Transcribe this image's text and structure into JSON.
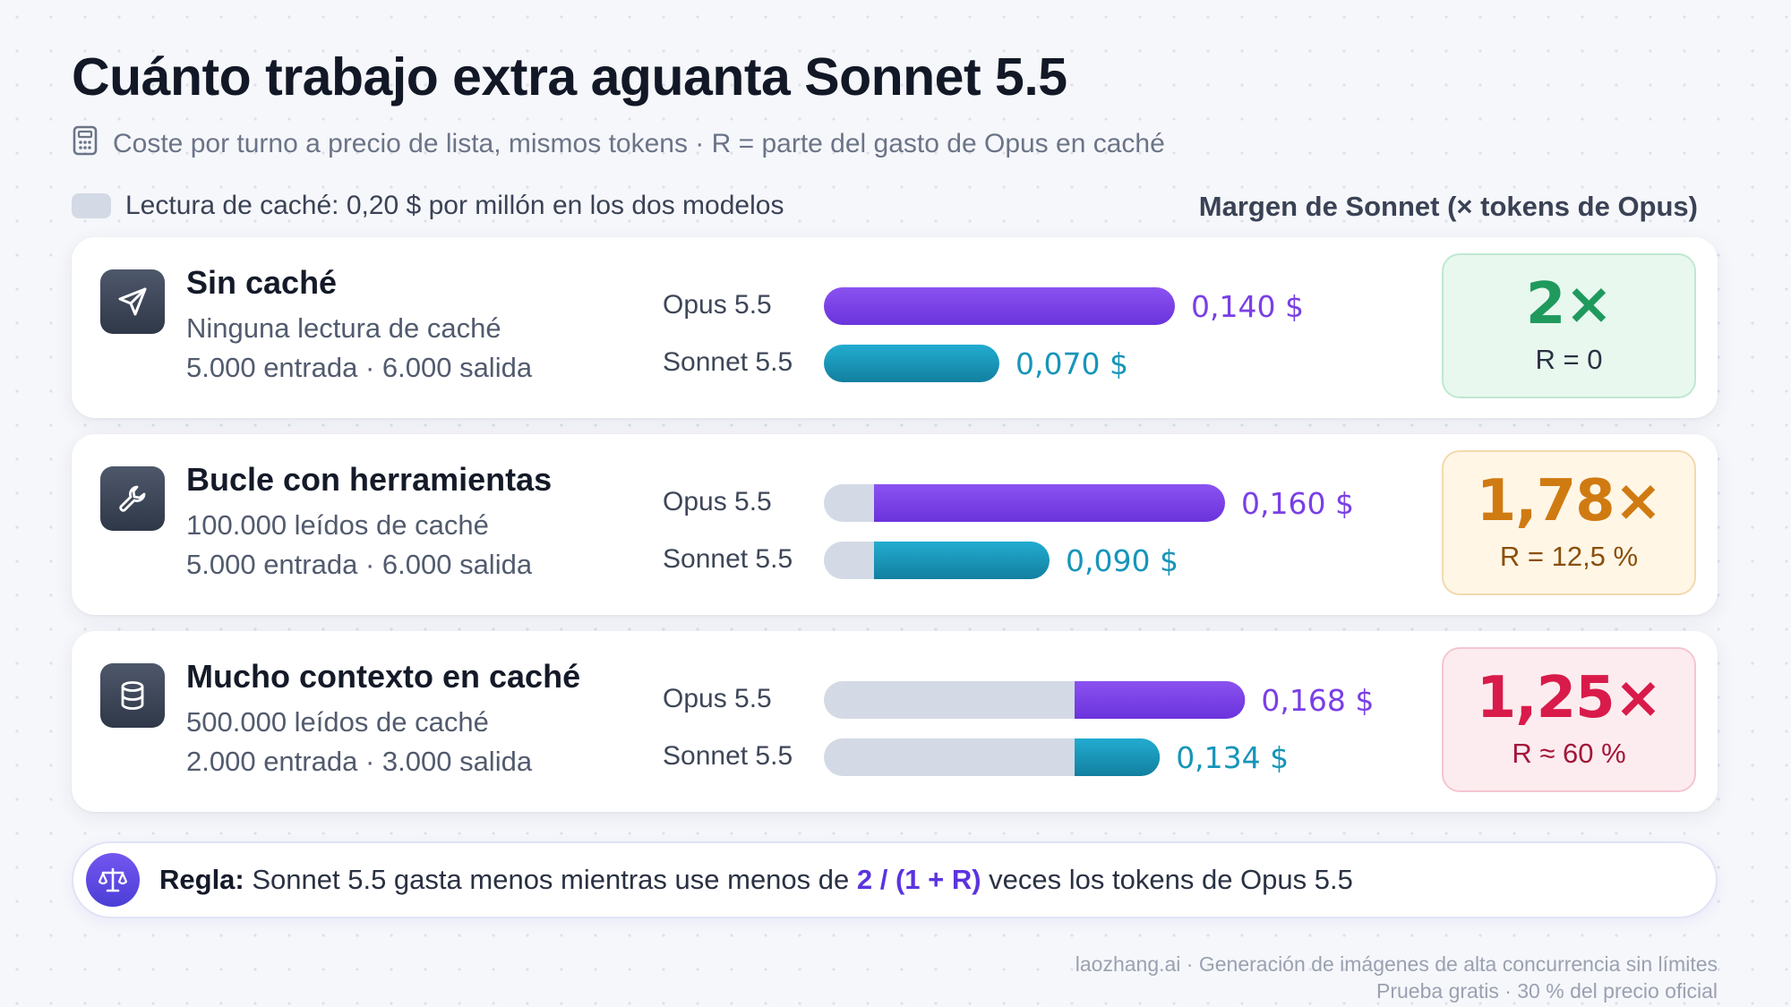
{
  "title": "Cuánto trabajo extra aguanta Sonnet 5.5",
  "subtitle": "Coste por turno a precio de lista, mismos tokens · R = parte del gasto de Opus en caché",
  "legend_label": "Lectura de caché: 0,20 $ por millón en los dos modelos",
  "margin_header": "Margen de Sonnet (× tokens de Opus)",
  "colors": {
    "opus": "#7a3fe6",
    "sonnet": "#1795b9",
    "cache": "#d3dae5",
    "good": "#1f9a5c",
    "mid": "#d07a12",
    "bad": "#d81b4a"
  },
  "chart_data": {
    "type": "bar",
    "orientation": "horizontal",
    "series_names": [
      "Opus 5.5",
      "Sonnet 5.5"
    ],
    "value_unit": "$",
    "scenarios": [
      {
        "title": "Sin caché",
        "line1": "Ninguna lectura de caché",
        "line2": "5.000 entrada · 6.000 salida",
        "icon": "send-icon",
        "bars": [
          {
            "series": "Opus 5.5",
            "cache": 0.0,
            "total": 0.14,
            "label": "0,140 $"
          },
          {
            "series": "Sonnet 5.5",
            "cache": 0.0,
            "total": 0.07,
            "label": "0,070 $"
          }
        ],
        "multiplier": "2×",
        "r_label": "R = 0",
        "tone": "good"
      },
      {
        "title": "Bucle con herramientas",
        "line1": "100.000 leídos de caché",
        "line2": "5.000 entrada · 6.000 salida",
        "icon": "wrench-icon",
        "bars": [
          {
            "series": "Opus 5.5",
            "cache": 0.02,
            "total": 0.16,
            "label": "0,160 $"
          },
          {
            "series": "Sonnet 5.5",
            "cache": 0.02,
            "total": 0.09,
            "label": "0,090 $"
          }
        ],
        "multiplier": "1,78×",
        "r_label": "R = 12,5 %",
        "tone": "mid"
      },
      {
        "title": "Mucho contexto en caché",
        "line1": "500.000 leídos de caché",
        "line2": "2.000 entrada · 3.000 salida",
        "icon": "database-icon",
        "bars": [
          {
            "series": "Opus 5.5",
            "cache": 0.1,
            "total": 0.168,
            "label": "0,168 $"
          },
          {
            "series": "Sonnet 5.5",
            "cache": 0.1,
            "total": 0.134,
            "label": "0,134 $"
          }
        ],
        "multiplier": "1,25×",
        "r_label": "R ≈ 60 %",
        "tone": "bad"
      }
    ]
  },
  "rule": {
    "strong": "Regla:",
    "text_before": " Sonnet 5.5 gasta menos mientras use menos de ",
    "formula": "2 / (1 + R)",
    "text_after": " veces los tokens de Opus 5.5",
    "icon": "scale-icon"
  },
  "footer": {
    "line1": "laozhang.ai · Generación de imágenes de alta concurrencia sin límites",
    "line2": "Prueba gratis · 30 % del precio oficial"
  }
}
